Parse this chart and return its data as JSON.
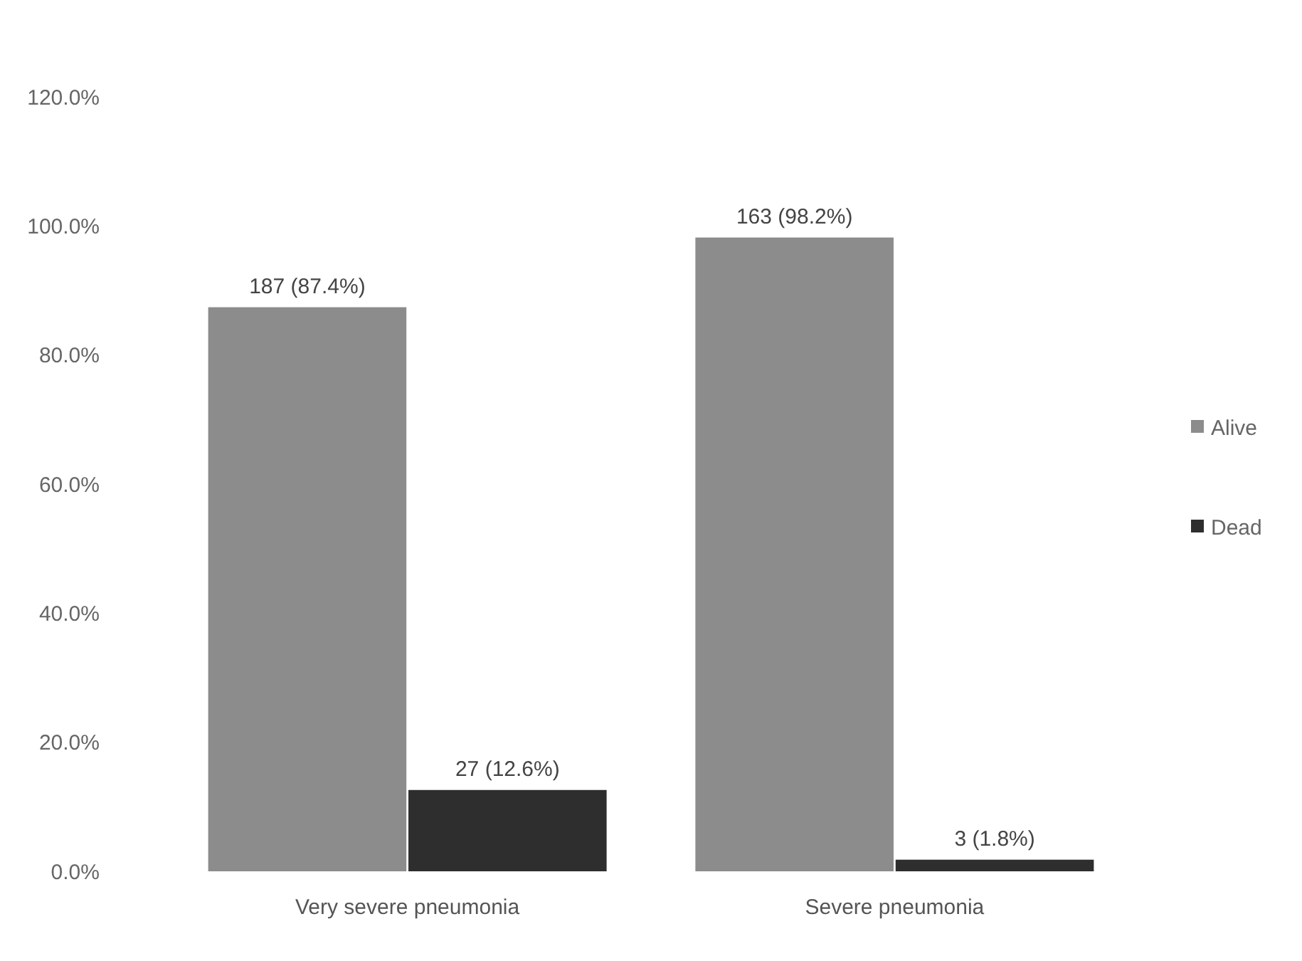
{
  "chart_data": {
    "type": "bar",
    "categories": [
      "Very severe pneumonia",
      "Severe pneumonia"
    ],
    "series": [
      {
        "name": "Alive",
        "color": "#8c8c8c",
        "values": [
          87.4,
          98.2
        ],
        "value_labels": [
          "187 (87.4%)",
          "163 (98.2%)"
        ]
      },
      {
        "name": "Dead",
        "color": "#2e2e2e",
        "values": [
          12.6,
          1.8
        ],
        "value_labels": [
          "27 (12.6%)",
          "3 (1.8%)"
        ]
      }
    ],
    "ylim": [
      0,
      120
    ],
    "yticks": [
      {
        "value": 0,
        "label": "0.0%"
      },
      {
        "value": 20,
        "label": "20.0%"
      },
      {
        "value": 40,
        "label": "40.0%"
      },
      {
        "value": 60,
        "label": "60.0%"
      },
      {
        "value": 80,
        "label": "80.0%"
      },
      {
        "value": 100,
        "label": "100.0%"
      },
      {
        "value": 120,
        "label": "120.0%"
      }
    ],
    "grid": false,
    "legend": "right"
  }
}
